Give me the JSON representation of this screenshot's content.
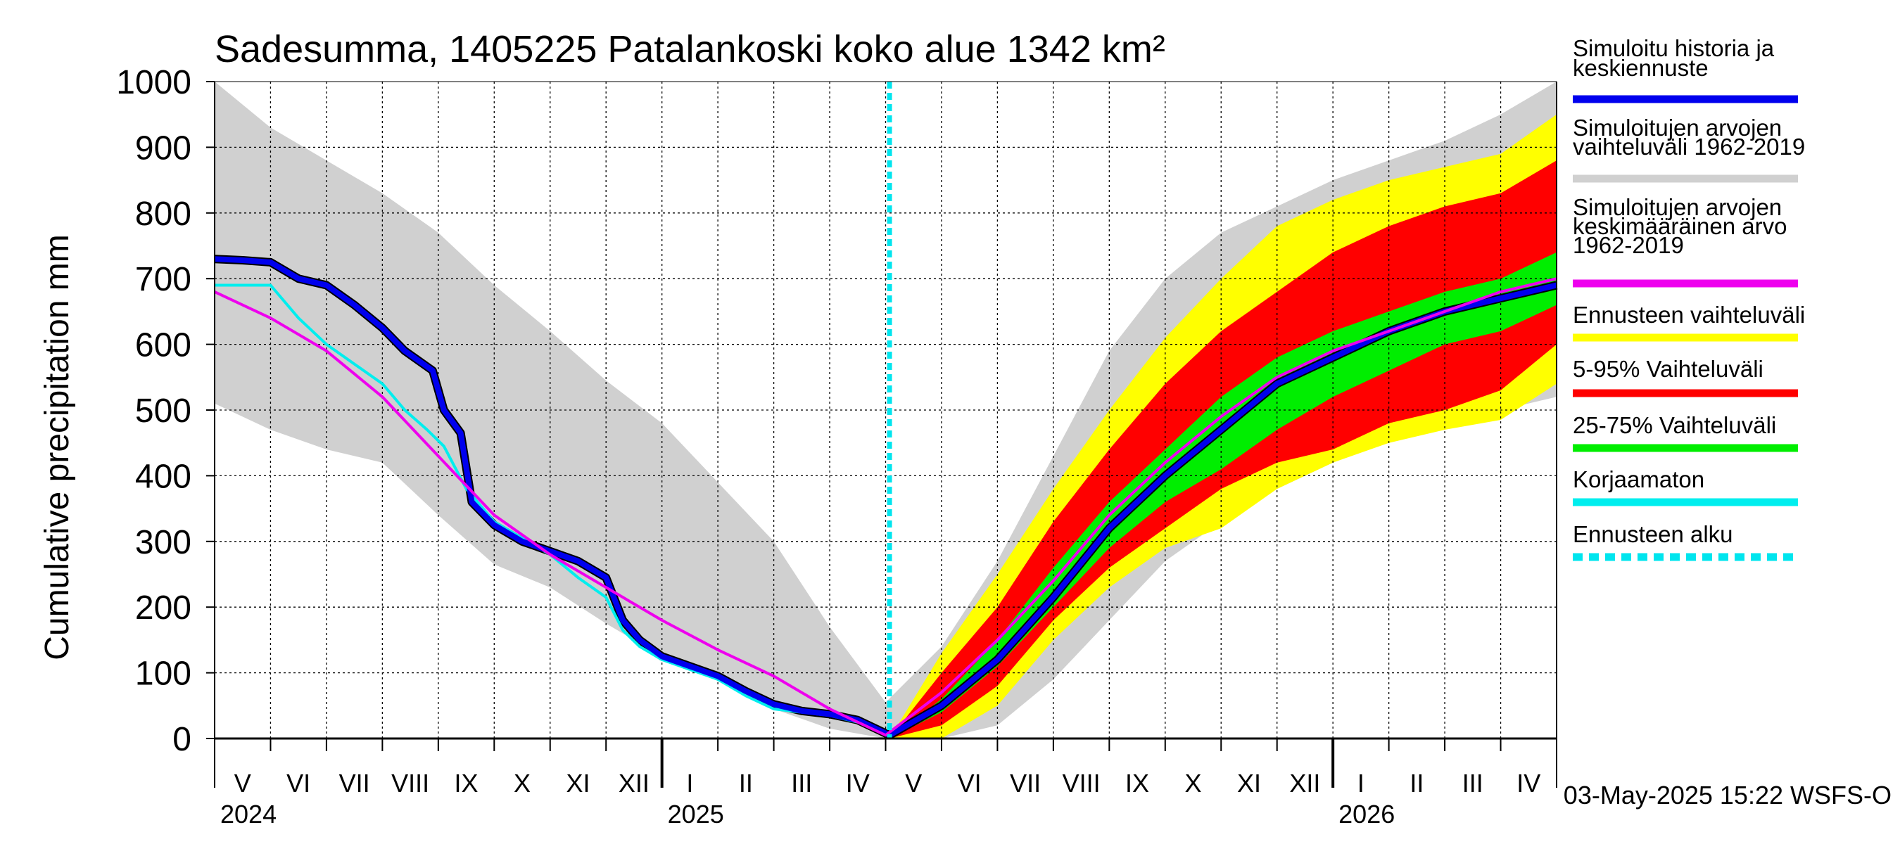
{
  "chart_data": {
    "type": "area",
    "title": "Sadesumma, 1405225 Patalankoski koko alue 1342 km²",
    "ylabel": "Cumulative precipitation   mm",
    "xlabel": "",
    "ylim": [
      0,
      1000
    ],
    "yticks": [
      "0",
      "100",
      "200",
      "300",
      "400",
      "500",
      "600",
      "700",
      "800",
      "900",
      "1000"
    ],
    "x_unit": "months since 2024-05-01",
    "xlim": [
      0,
      24
    ],
    "forecast_start": 12.07,
    "months": [
      "V",
      "VI",
      "VII",
      "VIII",
      "IX",
      "X",
      "XI",
      "XII",
      "I",
      "II",
      "III",
      "IV",
      "V",
      "VI",
      "VII",
      "VIII",
      "IX",
      "X",
      "XI",
      "XII",
      "I",
      "II",
      "III",
      "IV"
    ],
    "years": [
      {
        "label": "2024",
        "at": 0
      },
      {
        "label": "2025",
        "at": 8
      },
      {
        "label": "2026",
        "at": 20
      }
    ],
    "timestamp": "03-May-2025 15:22 WSFS-O",
    "legend": [
      {
        "key": "history",
        "label": [
          "Simuloitu historia ja",
          "keskiennuste"
        ],
        "color": "#0000ee",
        "style": "solid"
      },
      {
        "key": "range",
        "label": [
          "Simuloitujen arvojen",
          "vaihteluväli 1962-2019"
        ],
        "color": "#d0d0d0",
        "style": "solid"
      },
      {
        "key": "mean",
        "label": [
          "Simuloitujen arvojen",
          "keskimääräinen arvo",
          "   1962-2019"
        ],
        "color": "#ee00ee",
        "style": "solid"
      },
      {
        "key": "fc_range",
        "label": [
          "Ennusteen vaihteluväli"
        ],
        "color": "#ffff00",
        "style": "solid"
      },
      {
        "key": "p5_95",
        "label": [
          "5-95% Vaihteluväli"
        ],
        "color": "#ff0000",
        "style": "solid"
      },
      {
        "key": "p25_75",
        "label": [
          "25-75% Vaihteluväli"
        ],
        "color": "#00ee00",
        "style": "solid"
      },
      {
        "key": "uncorrected",
        "label": [
          "Korjaamaton"
        ],
        "color": "#00eeee",
        "style": "solid"
      },
      {
        "key": "fc_start",
        "label": [
          "Ennusteen alku"
        ],
        "color": "#00e5ee",
        "style": "dashed"
      }
    ],
    "series": [
      {
        "name": "Simuloitujen arvojen vaihteluväli 1962-2019 (upper)",
        "x": [
          0,
          1,
          2,
          3,
          4,
          5,
          6,
          7,
          8,
          9,
          10,
          11,
          12,
          13,
          14,
          15,
          16,
          17,
          18,
          19,
          20,
          21,
          22,
          23,
          24
        ],
        "values": [
          1000,
          930,
          880,
          830,
          770,
          690,
          620,
          545,
          480,
          390,
          300,
          170,
          55,
          140,
          270,
          430,
          590,
          700,
          770,
          810,
          850,
          880,
          910,
          950,
          1000
        ]
      },
      {
        "name": "Simuloitujen arvojen vaihteluväli 1962-2019 (lower)",
        "x": [
          0,
          1,
          2,
          3,
          4,
          5,
          6,
          7,
          8,
          9,
          10,
          11,
          12,
          13,
          14,
          15,
          16,
          17,
          18,
          19,
          20,
          21,
          22,
          23,
          24
        ],
        "values": [
          510,
          470,
          440,
          420,
          340,
          265,
          230,
          175,
          125,
          90,
          45,
          15,
          0,
          0,
          20,
          90,
          180,
          270,
          330,
          380,
          420,
          460,
          480,
          500,
          520
        ]
      },
      {
        "name": "Ennusteen vaihteluväli (upper)",
        "x": [
          12.07,
          13,
          14,
          15,
          16,
          17,
          18,
          19,
          20,
          21,
          22,
          23,
          24
        ],
        "values": [
          0,
          130,
          250,
          380,
          500,
          610,
          700,
          780,
          820,
          850,
          870,
          890,
          950
        ]
      },
      {
        "name": "Ennusteen vaihteluväli (lower)",
        "x": [
          12.07,
          13,
          14,
          15,
          16,
          17,
          18,
          19,
          20,
          21,
          22,
          23,
          24
        ],
        "values": [
          0,
          0,
          50,
          150,
          230,
          290,
          320,
          380,
          420,
          450,
          470,
          485,
          540
        ]
      },
      {
        "name": "5-95% Vaihteluväli (upper)",
        "x": [
          12.07,
          13,
          14,
          15,
          16,
          17,
          18,
          19,
          20,
          21,
          22,
          23,
          24
        ],
        "values": [
          0,
          100,
          200,
          330,
          440,
          540,
          620,
          680,
          740,
          780,
          810,
          830,
          880
        ]
      },
      {
        "name": "5-95% Vaihteluväli (lower)",
        "x": [
          12.07,
          13,
          14,
          15,
          16,
          17,
          18,
          19,
          20,
          21,
          22,
          23,
          24
        ],
        "values": [
          0,
          20,
          80,
          180,
          260,
          320,
          380,
          420,
          440,
          480,
          500,
          530,
          600
        ]
      },
      {
        "name": "25-75% Vaihteluväli (upper)",
        "x": [
          12.07,
          13,
          14,
          15,
          16,
          17,
          18,
          19,
          20,
          21,
          22,
          23,
          24
        ],
        "values": [
          0,
          60,
          150,
          260,
          360,
          440,
          520,
          580,
          620,
          650,
          680,
          700,
          740
        ]
      },
      {
        "name": "25-75% Vaihteluväli (lower)",
        "x": [
          12.07,
          13,
          14,
          15,
          16,
          17,
          18,
          19,
          20,
          21,
          22,
          23,
          24
        ],
        "values": [
          0,
          40,
          110,
          200,
          290,
          360,
          410,
          470,
          520,
          560,
          600,
          620,
          660
        ]
      },
      {
        "name": "Simuloitujen arvojen keskimääräinen arvo 1962-2019",
        "x": [
          0,
          1,
          2,
          3,
          4,
          5,
          6,
          7,
          8,
          9,
          10,
          11,
          12,
          13,
          14,
          15,
          16,
          17,
          18,
          19,
          20,
          21,
          22,
          23,
          24
        ],
        "values": [
          680,
          640,
          590,
          520,
          430,
          340,
          280,
          230,
          180,
          135,
          95,
          45,
          5,
          70,
          150,
          240,
          340,
          420,
          490,
          550,
          590,
          620,
          650,
          680,
          700
        ]
      },
      {
        "name": "Korjaamaton",
        "x": [
          0,
          1,
          1.5,
          2,
          2.5,
          3,
          3.4,
          3.8,
          4.1,
          4.5,
          5,
          5.5,
          6,
          6.5,
          7,
          7.3,
          7.6,
          8,
          8.5,
          9,
          9.5,
          10,
          10.5,
          11,
          11.5,
          12.07
        ],
        "values": [
          690,
          690,
          640,
          600,
          570,
          540,
          500,
          470,
          445,
          380,
          330,
          305,
          280,
          245,
          215,
          165,
          140,
          120,
          105,
          90,
          65,
          45,
          40,
          35,
          25,
          5
        ]
      },
      {
        "name": "Simuloitu historia ja keskiennuste",
        "x": [
          0,
          0.5,
          1,
          1.5,
          2,
          2.5,
          3,
          3.4,
          3.9,
          4.1,
          4.4,
          4.6,
          5,
          5.5,
          6,
          6.5,
          7,
          7.3,
          7.6,
          8,
          8.5,
          9,
          9.5,
          10,
          10.5,
          11,
          11.5,
          12.07,
          13,
          14,
          15,
          16,
          17,
          18,
          19,
          20,
          21,
          22,
          23,
          24
        ],
        "values": [
          730,
          728,
          725,
          700,
          690,
          660,
          625,
          590,
          560,
          500,
          465,
          360,
          325,
          300,
          285,
          270,
          245,
          180,
          150,
          125,
          110,
          95,
          72,
          52,
          42,
          37,
          28,
          5,
          50,
          120,
          215,
          320,
          400,
          470,
          540,
          580,
          620,
          650,
          670,
          690
        ]
      }
    ]
  }
}
